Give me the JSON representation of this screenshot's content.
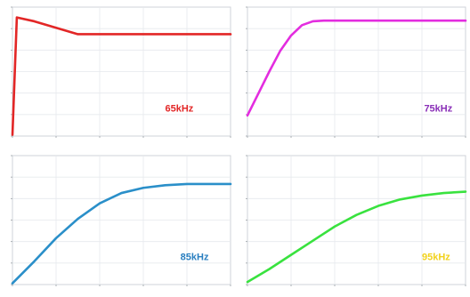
{
  "chart_data": [
    {
      "type": "line",
      "title": "",
      "xlabel": "",
      "ylabel": "",
      "grid": true,
      "xlim": [
        0,
        1
      ],
      "ylim": [
        0,
        1
      ],
      "annotation": "65kHz",
      "colors": {
        "line": "#e22626",
        "annotation": "#e22626"
      },
      "series": [
        {
          "x": [
            0,
            0.02,
            0.1,
            0.3,
            0.6,
            1
          ],
          "y": [
            0.01,
            0.92,
            0.89,
            0.79,
            0.79,
            0.79
          ]
        }
      ]
    },
    {
      "type": "line",
      "title": "",
      "xlabel": "",
      "ylabel": "",
      "grid": true,
      "xlim": [
        0,
        1
      ],
      "ylim": [
        0,
        1
      ],
      "annotation": "75kHz",
      "colors": {
        "line": "#e32ddf",
        "annotation": "#8a2fb8"
      },
      "series": [
        {
          "x": [
            0,
            0.05,
            0.1,
            0.15,
            0.2,
            0.25,
            0.3,
            0.35,
            0.4,
            0.5,
            0.6,
            0.8,
            1
          ],
          "y": [
            0.16,
            0.33,
            0.5,
            0.66,
            0.78,
            0.86,
            0.89,
            0.895,
            0.895,
            0.895,
            0.895,
            0.895,
            0.895
          ]
        }
      ]
    },
    {
      "type": "line",
      "title": "",
      "xlabel": "",
      "ylabel": "",
      "grid": true,
      "xlim": [
        0,
        1
      ],
      "ylim": [
        0,
        1
      ],
      "annotation": "85kHz",
      "colors": {
        "line": "#2a8fc9",
        "annotation": "#2a7fc0"
      },
      "series": [
        {
          "x": [
            0,
            0.1,
            0.2,
            0.3,
            0.4,
            0.5,
            0.6,
            0.7,
            0.8,
            0.9,
            1
          ],
          "y": [
            0.01,
            0.18,
            0.36,
            0.51,
            0.63,
            0.71,
            0.75,
            0.77,
            0.78,
            0.78,
            0.78
          ]
        }
      ]
    },
    {
      "type": "line",
      "title": "",
      "xlabel": "",
      "ylabel": "",
      "grid": true,
      "xlim": [
        0,
        1
      ],
      "ylim": [
        0,
        1
      ],
      "annotation": "95kHz",
      "colors": {
        "line": "#39e23f",
        "annotation": "#f2d21c"
      },
      "series": [
        {
          "x": [
            0,
            0.1,
            0.2,
            0.3,
            0.4,
            0.5,
            0.6,
            0.7,
            0.8,
            0.9,
            1
          ],
          "y": [
            0.02,
            0.12,
            0.23,
            0.34,
            0.45,
            0.54,
            0.61,
            0.66,
            0.69,
            0.71,
            0.72
          ]
        }
      ]
    }
  ]
}
